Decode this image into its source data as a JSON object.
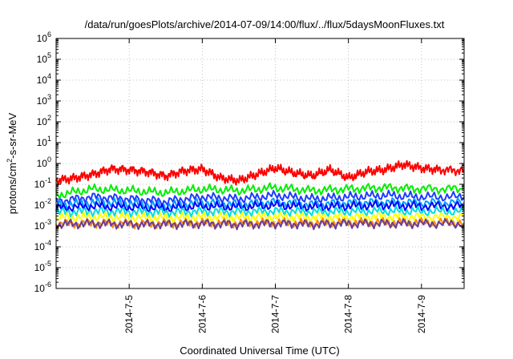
{
  "chart_data": {
    "type": "line",
    "title": "/data/run/goesPlots/archive/2014-07-09/14:00/flux/../flux/5daysMoonFluxes.txt",
    "xlabel": "Coordinated Universal Time (UTC)",
    "ylabel_prefix": "protons/cm",
    "ylabel_sup": "2",
    "ylabel_suffix": "-s-sr-MeV",
    "yscale": "log",
    "ylim": [
      1e-06,
      1000000.0
    ],
    "xlim": [
      "2014-07-04T00:00",
      "2014-07-09T14:00"
    ],
    "grid": true,
    "y_ticks": [
      {
        "value": 1e-06,
        "base": "10",
        "exp": "-6"
      },
      {
        "value": 1e-05,
        "base": "10",
        "exp": "-5"
      },
      {
        "value": 0.0001,
        "base": "10",
        "exp": "-4"
      },
      {
        "value": 0.001,
        "base": "10",
        "exp": "-3"
      },
      {
        "value": 0.01,
        "base": "10",
        "exp": "-2"
      },
      {
        "value": 0.1,
        "base": "10",
        "exp": "-1"
      },
      {
        "value": 1.0,
        "base": "10",
        "exp": "0"
      },
      {
        "value": 10.0,
        "base": "10",
        "exp": "1"
      },
      {
        "value": 100.0,
        "base": "10",
        "exp": "2"
      },
      {
        "value": 1000.0,
        "base": "10",
        "exp": "3"
      },
      {
        "value": 10000.0,
        "base": "10",
        "exp": "4"
      },
      {
        "value": 100000.0,
        "base": "10",
        "exp": "5"
      },
      {
        "value": 1000000.0,
        "base": "10",
        "exp": "6"
      }
    ],
    "x_ticks": [
      {
        "value": "2014-07-05T00:00",
        "label": "2014-7-5"
      },
      {
        "value": "2014-07-06T00:00",
        "label": "2014-7-6"
      },
      {
        "value": "2014-07-07T00:00",
        "label": "2014-7-7"
      },
      {
        "value": "2014-07-08T00:00",
        "label": "2014-7-8"
      },
      {
        "value": "2014-07-09T00:00",
        "label": "2014-7-9"
      }
    ],
    "series": [
      {
        "color": "#ff0000",
        "values": [
          [
            "2014-07-04T00:00",
            0.15
          ],
          [
            "2014-07-04T06:00",
            0.2
          ],
          [
            "2014-07-04T12:00",
            0.3
          ],
          [
            "2014-07-04T18:00",
            0.55
          ],
          [
            "2014-07-05T00:00",
            0.5
          ],
          [
            "2014-07-05T06:00",
            0.4
          ],
          [
            "2014-07-05T12:00",
            0.25
          ],
          [
            "2014-07-05T18:00",
            0.45
          ],
          [
            "2014-07-06T00:00",
            0.55
          ],
          [
            "2014-07-06T06:00",
            0.2
          ],
          [
            "2014-07-06T12:00",
            0.15
          ],
          [
            "2014-07-06T18:00",
            0.3
          ],
          [
            "2014-07-07T00:00",
            0.6
          ],
          [
            "2014-07-07T06:00",
            0.35
          ],
          [
            "2014-07-07T12:00",
            0.25
          ],
          [
            "2014-07-07T18:00",
            0.5
          ],
          [
            "2014-07-08T00:00",
            0.2
          ],
          [
            "2014-07-08T06:00",
            0.4
          ],
          [
            "2014-07-08T12:00",
            0.5
          ],
          [
            "2014-07-08T18:00",
            0.9
          ],
          [
            "2014-07-09T00:00",
            0.6
          ],
          [
            "2014-07-09T06:00",
            0.5
          ],
          [
            "2014-07-09T14:00",
            0.45
          ]
        ]
      },
      {
        "color": "#00ee00",
        "values": [
          [
            "2014-07-04T00:00",
            0.03
          ],
          [
            "2014-07-04T12:00",
            0.06
          ],
          [
            "2014-07-05T00:00",
            0.05
          ],
          [
            "2014-07-05T12:00",
            0.04
          ],
          [
            "2014-07-06T00:00",
            0.06
          ],
          [
            "2014-07-06T12:00",
            0.05
          ],
          [
            "2014-07-07T00:00",
            0.07
          ],
          [
            "2014-07-07T12:00",
            0.05
          ],
          [
            "2014-07-08T00:00",
            0.06
          ],
          [
            "2014-07-08T12:00",
            0.07
          ],
          [
            "2014-07-09T00:00",
            0.06
          ],
          [
            "2014-07-09T14:00",
            0.06
          ]
        ]
      },
      {
        "color": "#1e3cff",
        "values": [
          [
            "2014-07-04T00:00",
            0.015
          ],
          [
            "2014-07-04T12:00",
            0.025
          ],
          [
            "2014-07-05T00:00",
            0.02
          ],
          [
            "2014-07-05T12:00",
            0.015
          ],
          [
            "2014-07-06T00:00",
            0.025
          ],
          [
            "2014-07-06T12:00",
            0.02
          ],
          [
            "2014-07-07T00:00",
            0.03
          ],
          [
            "2014-07-07T12:00",
            0.02
          ],
          [
            "2014-07-08T00:00",
            0.025
          ],
          [
            "2014-07-08T12:00",
            0.03
          ],
          [
            "2014-07-09T00:00",
            0.025
          ],
          [
            "2014-07-09T14:00",
            0.025
          ]
        ]
      },
      {
        "color": "#00a0ff",
        "values": [
          [
            "2014-07-04T00:00",
            0.01
          ],
          [
            "2014-07-04T12:00",
            0.013
          ],
          [
            "2014-07-05T00:00",
            0.012
          ],
          [
            "2014-07-05T12:00",
            0.009
          ],
          [
            "2014-07-06T00:00",
            0.013
          ],
          [
            "2014-07-06T12:00",
            0.011
          ],
          [
            "2014-07-07T00:00",
            0.014
          ],
          [
            "2014-07-07T12:00",
            0.011
          ],
          [
            "2014-07-08T00:00",
            0.013
          ],
          [
            "2014-07-08T12:00",
            0.014
          ],
          [
            "2014-07-09T00:00",
            0.013
          ],
          [
            "2014-07-09T14:00",
            0.013
          ]
        ]
      },
      {
        "color": "#0000ff",
        "values": [
          [
            "2014-07-04T00:00",
            0.007
          ],
          [
            "2014-07-04T12:00",
            0.009
          ],
          [
            "2014-07-05T00:00",
            0.008
          ],
          [
            "2014-07-05T12:00",
            0.007
          ],
          [
            "2014-07-06T00:00",
            0.009
          ],
          [
            "2014-07-06T12:00",
            0.008
          ],
          [
            "2014-07-07T00:00",
            0.01
          ],
          [
            "2014-07-07T12:00",
            0.008
          ],
          [
            "2014-07-08T00:00",
            0.009
          ],
          [
            "2014-07-08T12:00",
            0.01
          ],
          [
            "2014-07-09T00:00",
            0.009
          ],
          [
            "2014-07-09T14:00",
            0.009
          ]
        ]
      },
      {
        "color": "#00dddd",
        "values": [
          [
            "2014-07-04T00:00",
            0.0045
          ],
          [
            "2014-07-04T12:00",
            0.005
          ],
          [
            "2014-07-05T00:00",
            0.0048
          ],
          [
            "2014-07-05T12:00",
            0.0045
          ],
          [
            "2014-07-06T00:00",
            0.005
          ],
          [
            "2014-07-06T12:00",
            0.0048
          ],
          [
            "2014-07-07T00:00",
            0.0052
          ],
          [
            "2014-07-07T12:00",
            0.0048
          ],
          [
            "2014-07-08T00:00",
            0.005
          ],
          [
            "2014-07-08T12:00",
            0.0052
          ],
          [
            "2014-07-09T00:00",
            0.005
          ],
          [
            "2014-07-09T14:00",
            0.005
          ]
        ]
      },
      {
        "color": "#ffff00",
        "values": [
          [
            "2014-07-04T00:00",
            0.0025
          ],
          [
            "2014-07-04T12:00",
            0.0027
          ],
          [
            "2014-07-05T00:00",
            0.0026
          ],
          [
            "2014-07-05T12:00",
            0.0025
          ],
          [
            "2014-07-06T00:00",
            0.0027
          ],
          [
            "2014-07-06T12:00",
            0.0026
          ],
          [
            "2014-07-07T00:00",
            0.0028
          ],
          [
            "2014-07-07T12:00",
            0.0026
          ],
          [
            "2014-07-08T00:00",
            0.0027
          ],
          [
            "2014-07-08T12:00",
            0.0028
          ],
          [
            "2014-07-09T00:00",
            0.0027
          ],
          [
            "2014-07-09T14:00",
            0.0027
          ]
        ]
      },
      {
        "color": "#ff8800",
        "values": [
          [
            "2014-07-04T00:00",
            0.0013
          ],
          [
            "2014-07-04T12:00",
            0.0014
          ],
          [
            "2014-07-05T00:00",
            0.0013
          ],
          [
            "2014-07-05T12:00",
            0.0013
          ],
          [
            "2014-07-06T00:00",
            0.0014
          ],
          [
            "2014-07-06T12:00",
            0.0013
          ],
          [
            "2014-07-07T00:00",
            0.0014
          ],
          [
            "2014-07-07T12:00",
            0.0013
          ],
          [
            "2014-07-08T00:00",
            0.0014
          ],
          [
            "2014-07-08T12:00",
            0.0014
          ],
          [
            "2014-07-09T00:00",
            0.0014
          ],
          [
            "2014-07-09T14:00",
            0.0014
          ]
        ]
      },
      {
        "color": "#6a3d9a",
        "values": [
          [
            "2014-07-04T00:00",
            0.0012
          ],
          [
            "2014-07-04T12:00",
            0.0013
          ],
          [
            "2014-07-05T00:00",
            0.0012
          ],
          [
            "2014-07-05T12:00",
            0.0012
          ],
          [
            "2014-07-06T00:00",
            0.0013
          ],
          [
            "2014-07-06T12:00",
            0.0012
          ],
          [
            "2014-07-07T00:00",
            0.0013
          ],
          [
            "2014-07-07T12:00",
            0.0012
          ],
          [
            "2014-07-08T00:00",
            0.0013
          ],
          [
            "2014-07-08T12:00",
            0.0013
          ],
          [
            "2014-07-09T00:00",
            0.0013
          ],
          [
            "2014-07-09T14:00",
            0.0013
          ]
        ]
      }
    ]
  }
}
